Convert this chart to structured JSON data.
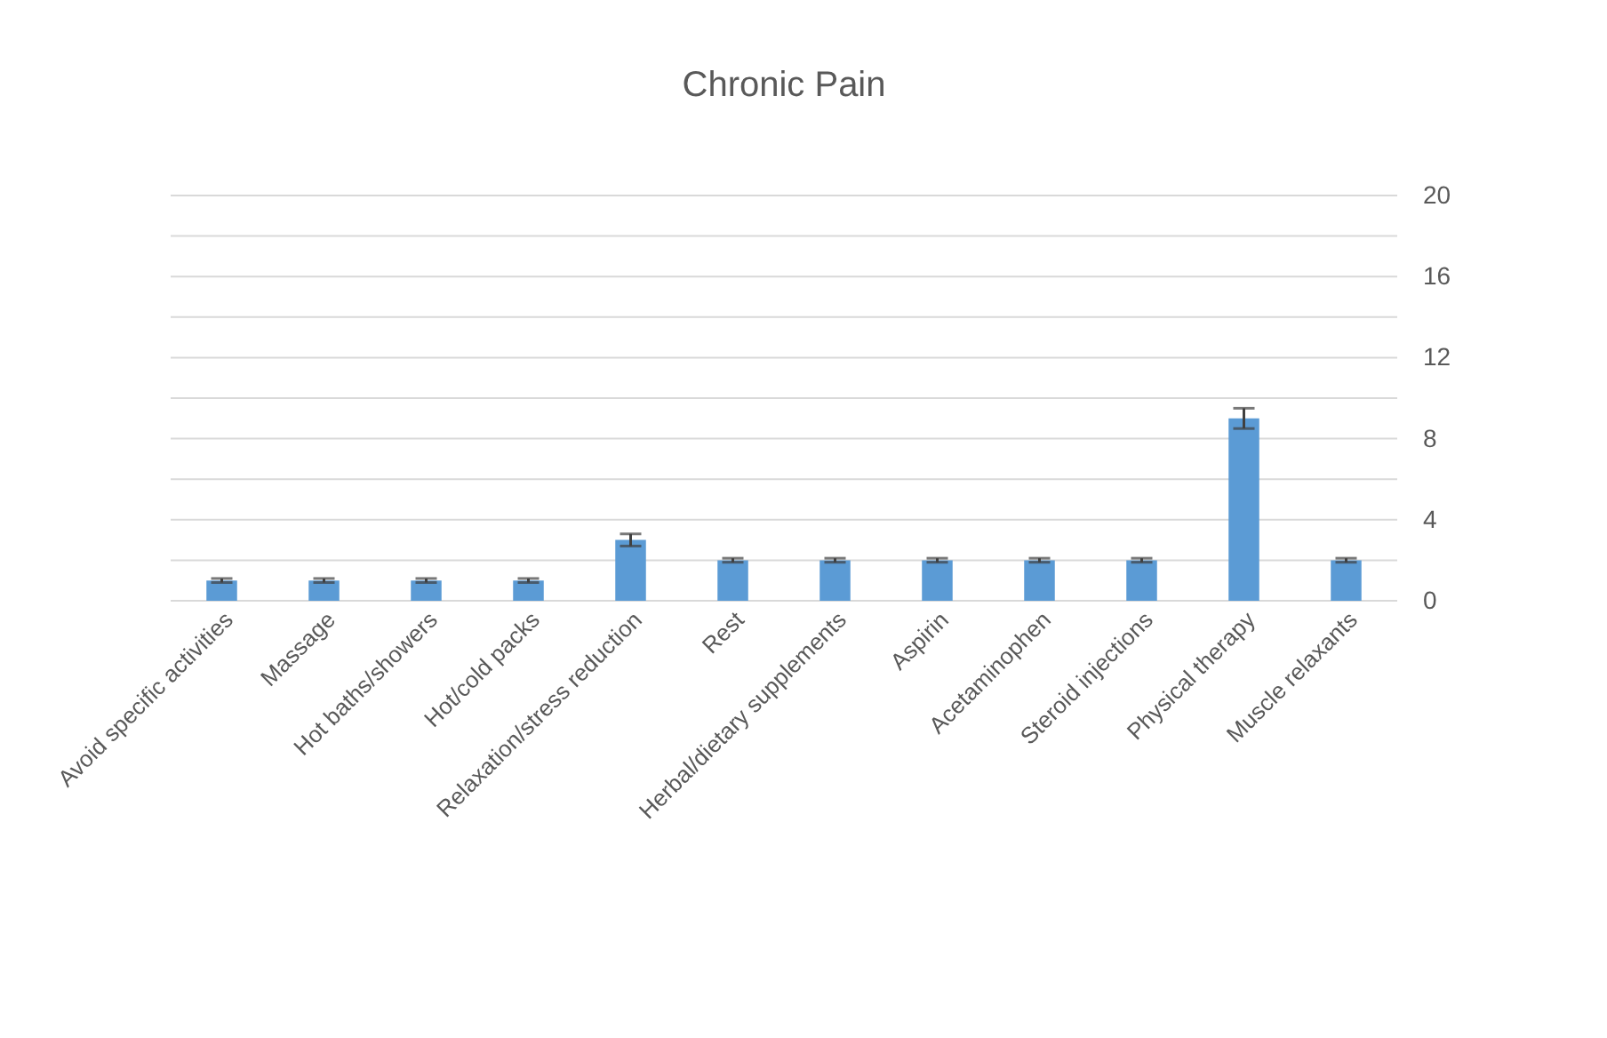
{
  "chart_data": {
    "type": "bar",
    "title": "Chronic Pain",
    "categories": [
      "Avoid specific activities",
      "Massage",
      "Hot baths/showers",
      "Hot/cold packs",
      "Relaxation/stress reduction",
      "Rest",
      "Herbal/dietary supplements",
      "Aspirin",
      "Acetaminophen",
      "Steroid injections",
      "Physical therapy",
      "Muscle relaxants"
    ],
    "values": [
      1,
      1,
      1,
      1,
      3,
      2,
      2,
      2,
      2,
      2,
      9,
      2
    ],
    "errors": [
      0.1,
      0.1,
      0.1,
      0.1,
      0.3,
      0.1,
      0.1,
      0.1,
      0.1,
      0.1,
      0.5,
      0.1
    ],
    "color": "#5b9bd5",
    "ylim": [
      0,
      20
    ],
    "yticks": [
      0,
      {
        "value": 2,
        "label": null
      },
      4,
      {
        "value": 6,
        "label": null
      },
      8,
      {
        "value": 10,
        "label": null
      },
      12,
      {
        "value": 14,
        "label": null
      },
      16,
      {
        "value": 18,
        "label": null
      },
      20
    ],
    "grid": "y"
  }
}
